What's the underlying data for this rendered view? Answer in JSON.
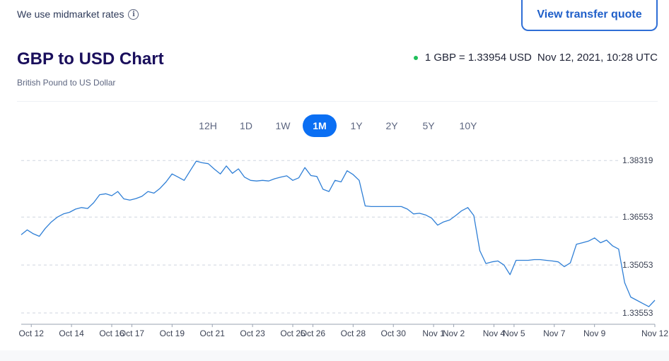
{
  "header": {
    "midmarket_text": "We use midmarket rates",
    "info_icon": "info-icon",
    "quote_button": "View transfer quote"
  },
  "title": "GBP to USD Chart",
  "subtitle": "British Pound to US Dollar",
  "rate": {
    "value": "1 GBP = 1.33954 USD",
    "timestamp": "Nov 12, 2021, 10:28 UTC",
    "live_color": "#1fbf5a"
  },
  "tabs": [
    {
      "label": "12H",
      "active": false
    },
    {
      "label": "1D",
      "active": false
    },
    {
      "label": "1W",
      "active": false
    },
    {
      "label": "1M",
      "active": true
    },
    {
      "label": "1Y",
      "active": false
    },
    {
      "label": "2Y",
      "active": false
    },
    {
      "label": "5Y",
      "active": false
    },
    {
      "label": "10Y",
      "active": false
    }
  ],
  "colors": {
    "accent": "#0b6ff3",
    "line": "#2f7fd6",
    "title": "#1a0f5c"
  },
  "chart_data": {
    "type": "line",
    "title": "GBP to USD Chart",
    "xlabel": "",
    "ylabel": "",
    "ylim": [
      1.332,
      1.387
    ],
    "yticks": [
      1.38319,
      1.36553,
      1.35053,
      1.33553
    ],
    "ytick_labels": [
      "1.38319",
      "1.36553",
      "1.35053",
      "1.33553"
    ],
    "xticks": [
      {
        "x": 0.5,
        "label": "Oct 12"
      },
      {
        "x": 2.5,
        "label": "Oct 14"
      },
      {
        "x": 4.5,
        "label": "Oct 16"
      },
      {
        "x": 5.5,
        "label": "Oct 17"
      },
      {
        "x": 7.5,
        "label": "Oct 19"
      },
      {
        "x": 9.5,
        "label": "Oct 21"
      },
      {
        "x": 11.5,
        "label": "Oct 23"
      },
      {
        "x": 13.5,
        "label": "Oct 25"
      },
      {
        "x": 14.5,
        "label": "Oct 26"
      },
      {
        "x": 16.5,
        "label": "Oct 28"
      },
      {
        "x": 18.5,
        "label": "Oct 30"
      },
      {
        "x": 20.5,
        "label": "Nov 1"
      },
      {
        "x": 21.5,
        "label": "Nov 2"
      },
      {
        "x": 23.5,
        "label": "Nov 4"
      },
      {
        "x": 24.5,
        "label": "Nov 5"
      },
      {
        "x": 26.5,
        "label": "Nov 7"
      },
      {
        "x": 28.5,
        "label": "Nov 9"
      },
      {
        "x": 31.5,
        "label": "Nov 12"
      }
    ],
    "grid": "horizontal-dashed",
    "xlim": [
      0,
      31.5
    ],
    "series": [
      {
        "name": "",
        "x": [
          0,
          0.3,
          0.6,
          0.9,
          1.2,
          1.5,
          1.8,
          2.1,
          2.4,
          2.7,
          3.0,
          3.3,
          3.6,
          3.9,
          4.2,
          4.5,
          4.8,
          5.1,
          5.4,
          5.7,
          6.0,
          6.3,
          6.6,
          6.9,
          7.2,
          7.5,
          7.8,
          8.1,
          8.4,
          8.7,
          9.0,
          9.3,
          9.6,
          9.9,
          10.2,
          10.5,
          10.8,
          11.1,
          11.4,
          11.7,
          12.0,
          12.3,
          12.6,
          12.9,
          13.2,
          13.5,
          13.8,
          14.1,
          14.4,
          14.7,
          15.0,
          15.3,
          15.6,
          15.9,
          16.2,
          16.5,
          16.8,
          17.1,
          17.4,
          17.7,
          18.0,
          18.3,
          18.6,
          18.9,
          19.2,
          19.5,
          19.8,
          20.1,
          20.4,
          20.7,
          21.0,
          21.3,
          21.6,
          21.9,
          22.2,
          22.5,
          22.8,
          23.1,
          23.4,
          23.7,
          24.0,
          24.3,
          24.6,
          24.9,
          25.2,
          25.5,
          25.8,
          26.1,
          26.4,
          26.7,
          27.0,
          27.3,
          27.6,
          27.9,
          28.2,
          28.5,
          28.8,
          29.1,
          29.4,
          29.7,
          30.0,
          30.3,
          30.6,
          30.9,
          31.2,
          31.5
        ],
        "values": [
          1.36,
          1.3615,
          1.3603,
          1.3595,
          1.362,
          1.364,
          1.3655,
          1.3665,
          1.367,
          1.368,
          1.3685,
          1.3682,
          1.37,
          1.3725,
          1.3728,
          1.3722,
          1.3735,
          1.3712,
          1.3708,
          1.3713,
          1.372,
          1.3735,
          1.373,
          1.3745,
          1.3765,
          1.379,
          1.378,
          1.377,
          1.38,
          1.383,
          1.3825,
          1.3822,
          1.3805,
          1.379,
          1.3815,
          1.3792,
          1.3806,
          1.378,
          1.377,
          1.3768,
          1.377,
          1.3768,
          1.3775,
          1.378,
          1.3784,
          1.377,
          1.3778,
          1.381,
          1.3785,
          1.3782,
          1.3742,
          1.3735,
          1.377,
          1.3765,
          1.38,
          1.3788,
          1.377,
          1.369,
          1.3688,
          1.3688,
          1.3688,
          1.3688,
          1.3688,
          1.3688,
          1.368,
          1.3665,
          1.3667,
          1.3662,
          1.3652,
          1.363,
          1.364,
          1.3646,
          1.366,
          1.3675,
          1.3685,
          1.366,
          1.355,
          1.351,
          1.3515,
          1.3518,
          1.3505,
          1.3475,
          1.352,
          1.352,
          1.352,
          1.3522,
          1.3522,
          1.352,
          1.3518,
          1.3515,
          1.35,
          1.3512,
          1.357,
          1.3575,
          1.358,
          1.359,
          1.3575,
          1.3583,
          1.3565,
          1.3555,
          1.345,
          1.3405,
          1.3395,
          1.3385,
          1.3375,
          1.3395
        ]
      }
    ]
  }
}
